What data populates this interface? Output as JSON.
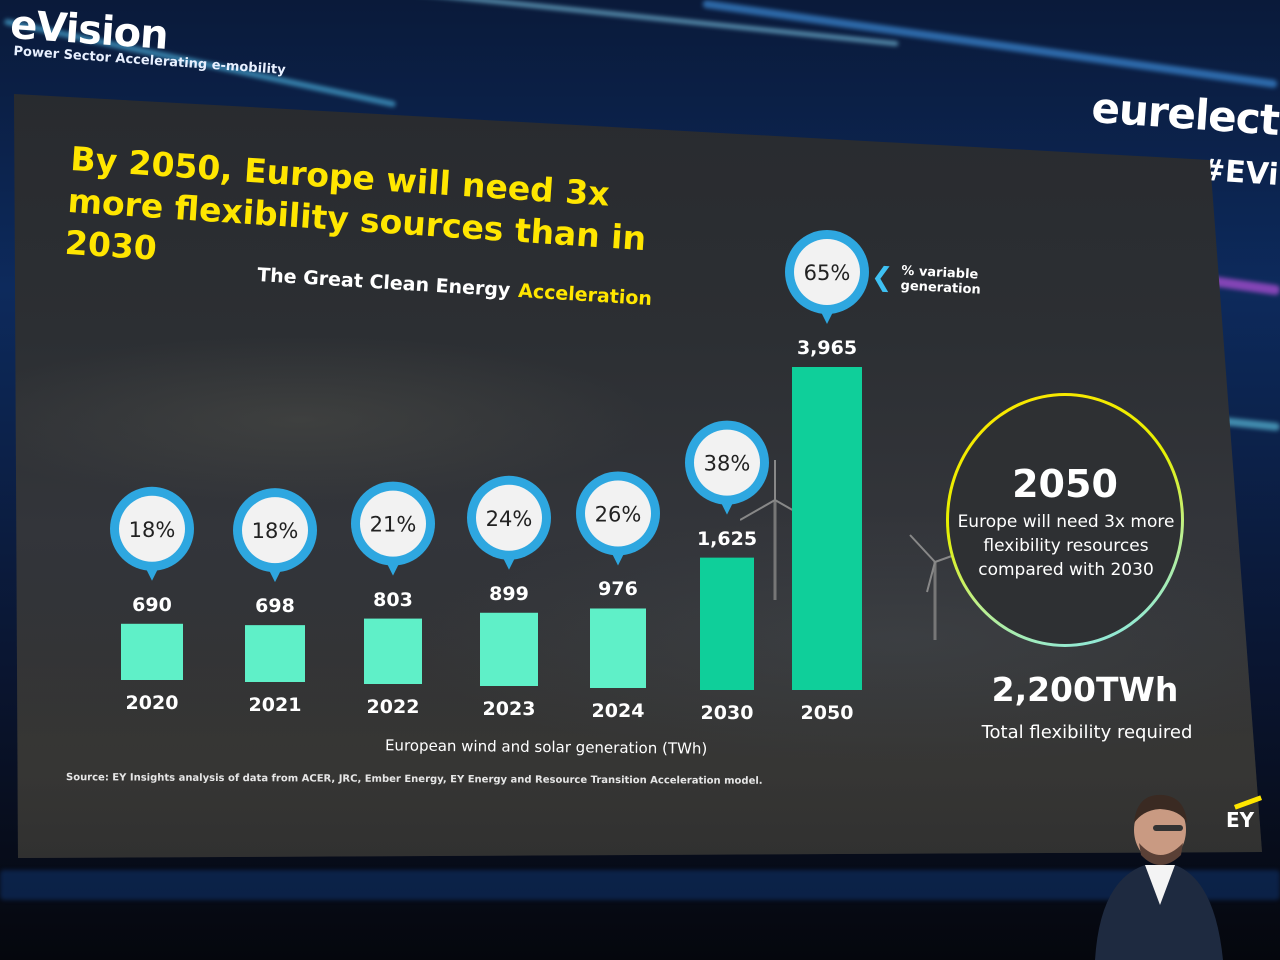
{
  "hall": {
    "brand": "eVision",
    "tagline": "Power Sector Accelerating e-mobility",
    "logo_right": "eurelect",
    "hashtag": "#EVi"
  },
  "slide": {
    "headline": "By 2050, Europe will need 3x more flexibility sources than in 2030",
    "subtitle": "The Great Clean Energy",
    "subtitle_accent": "Acceleration",
    "legend_label": "% variable generation",
    "callout": {
      "year": "2050",
      "text": "Europe will need 3x more flexibility resources compared with 2030"
    },
    "total_value": "2,200TWh",
    "total_caption": "Total flexibility required",
    "source": "Source: EY Insights analysis of data from ACER, JRC, Ember Energy, EY Energy and Resource Transition Acceleration model.",
    "logo": "EY"
  },
  "chart_data": {
    "type": "bar",
    "categories": [
      "2020",
      "2021",
      "2022",
      "2023",
      "2024",
      "2030",
      "2050"
    ],
    "values": [
      690,
      698,
      803,
      899,
      976,
      1625,
      3965
    ],
    "value_labels": [
      "690",
      "698",
      "803",
      "899",
      "976",
      "1,625",
      "3,965"
    ],
    "variable_share": [
      "18%",
      "18%",
      "21%",
      "24%",
      "26%",
      "38%",
      "65%"
    ],
    "xlabel": "European wind and solar generation (TWh)",
    "legend": "% variable generation",
    "colors": {
      "bar_light": "#5ff0c8",
      "bar_dark": "#0fcf9a",
      "bubble_fill": "#f2f2f2",
      "bubble_ring": "#2ea7e0"
    }
  }
}
